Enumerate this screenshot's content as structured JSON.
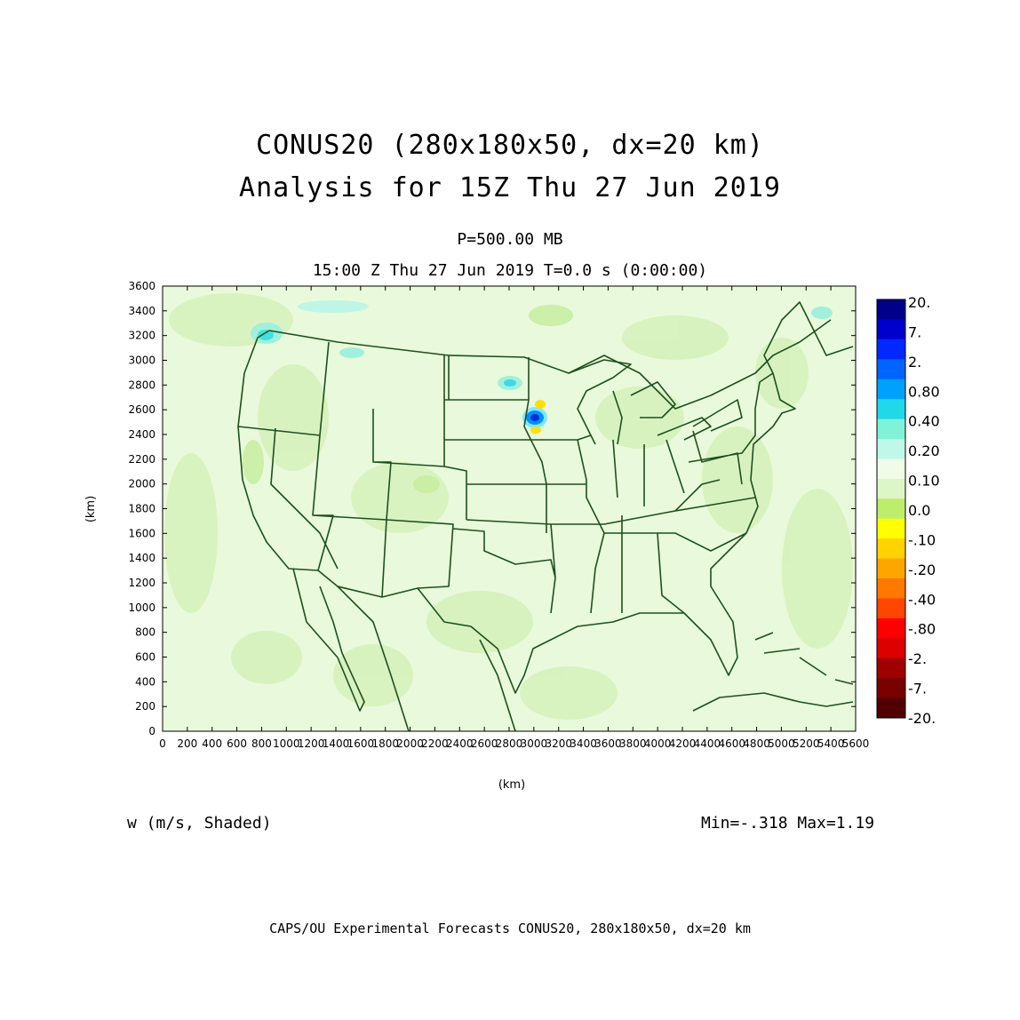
{
  "title": {
    "line1": "CONUS20 (280x180x50, dx=20 km)",
    "line2": "Analysis for 15Z Thu 27 Jun 2019"
  },
  "subtitle": {
    "level": "P=500.00 MB",
    "time": "15:00 Z Thu 27 Jun 2019    T=0.0 s (0:00:00)"
  },
  "field_label": "w (m/s, Shaded)",
  "minmax": "Min=-.318 Max=1.19",
  "footer": "CAPS/OU Experimental Forecasts  CONUS20, 280x180x50, dx=20 km",
  "axes": {
    "x_label": "(km)",
    "y_label": "(km)",
    "x_range": [
      0,
      5600
    ],
    "y_range": [
      0,
      3600
    ],
    "x_ticks": [
      "0",
      "200",
      "400",
      "600",
      "800",
      "1000",
      "1200",
      "1400",
      "1600",
      "1800",
      "2000",
      "2200",
      "2400",
      "2600",
      "2800",
      "3000",
      "3200",
      "3400",
      "3600",
      "3800",
      "4000",
      "4200",
      "4400",
      "4600",
      "4800",
      "5000",
      "5200",
      "5400",
      "5600"
    ],
    "y_ticks": [
      "0",
      "200",
      "400",
      "600",
      "800",
      "1000",
      "1200",
      "1400",
      "1600",
      "1800",
      "2000",
      "2200",
      "2400",
      "2600",
      "2800",
      "3000",
      "3200",
      "3400",
      "3600"
    ]
  },
  "colorbar": {
    "labels": [
      "20.",
      "7.",
      "2.",
      "0.80",
      "0.40",
      "0.20",
      "0.10",
      "0.0",
      "-.10",
      "-.20",
      "-.40",
      "-.80",
      "-2.",
      "-7.",
      "-20."
    ],
    "colors": [
      "#00008b",
      "#0000cd",
      "#0028ff",
      "#0064ff",
      "#00a0ff",
      "#20d8e8",
      "#7ff2d8",
      "#bff8e8",
      "#f0fce8",
      "#dcf6c8",
      "#bcee6c",
      "#ffff00",
      "#ffd200",
      "#ffa500",
      "#ff7800",
      "#ff4600",
      "#ff0000",
      "#dc0000",
      "#a00000",
      "#780000",
      "#500000"
    ]
  },
  "map": {
    "background_color": "#e6f8d4",
    "boundary_color": "#1f4f1f"
  }
}
